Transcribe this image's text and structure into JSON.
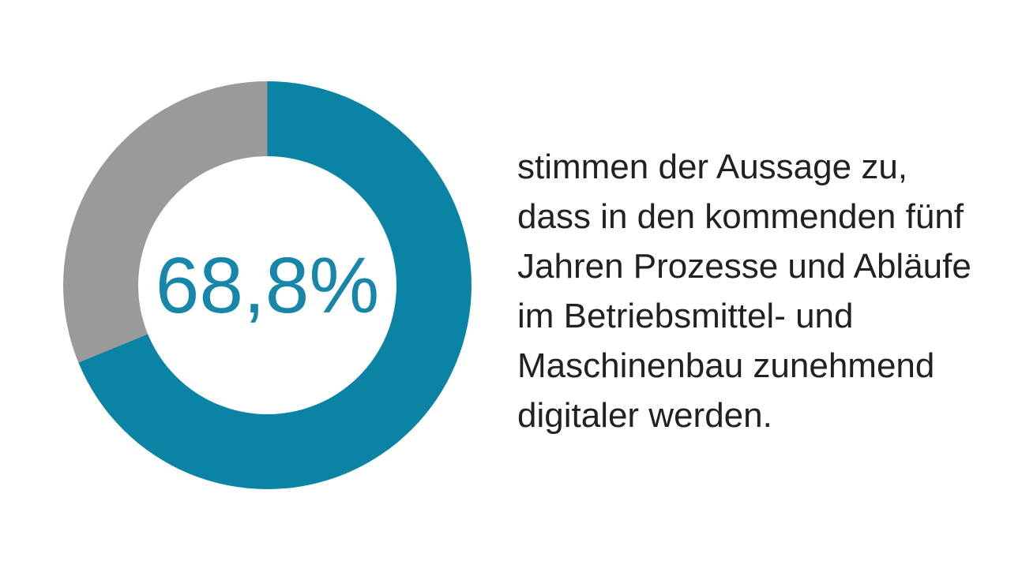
{
  "page": {
    "background": "#ffffff"
  },
  "chart_data": {
    "type": "pie",
    "subtype": "donut",
    "values": [
      68.8,
      31.2
    ],
    "colors": [
      "#0b83a5",
      "#9a9a9a"
    ],
    "start_angle_deg": 0,
    "direction": "clockwise",
    "center_label": "68,8%",
    "center_label_color": "#1886a9",
    "legend": "none"
  },
  "description": {
    "text": "stimmen der Aussage zu,\ndass in den kommenden fünf\nJahren Prozesse und Abläufe\nim Betriebsmittel- und\nMaschinenbau zunehmend\ndigitaler werden.",
    "color": "#212121"
  }
}
